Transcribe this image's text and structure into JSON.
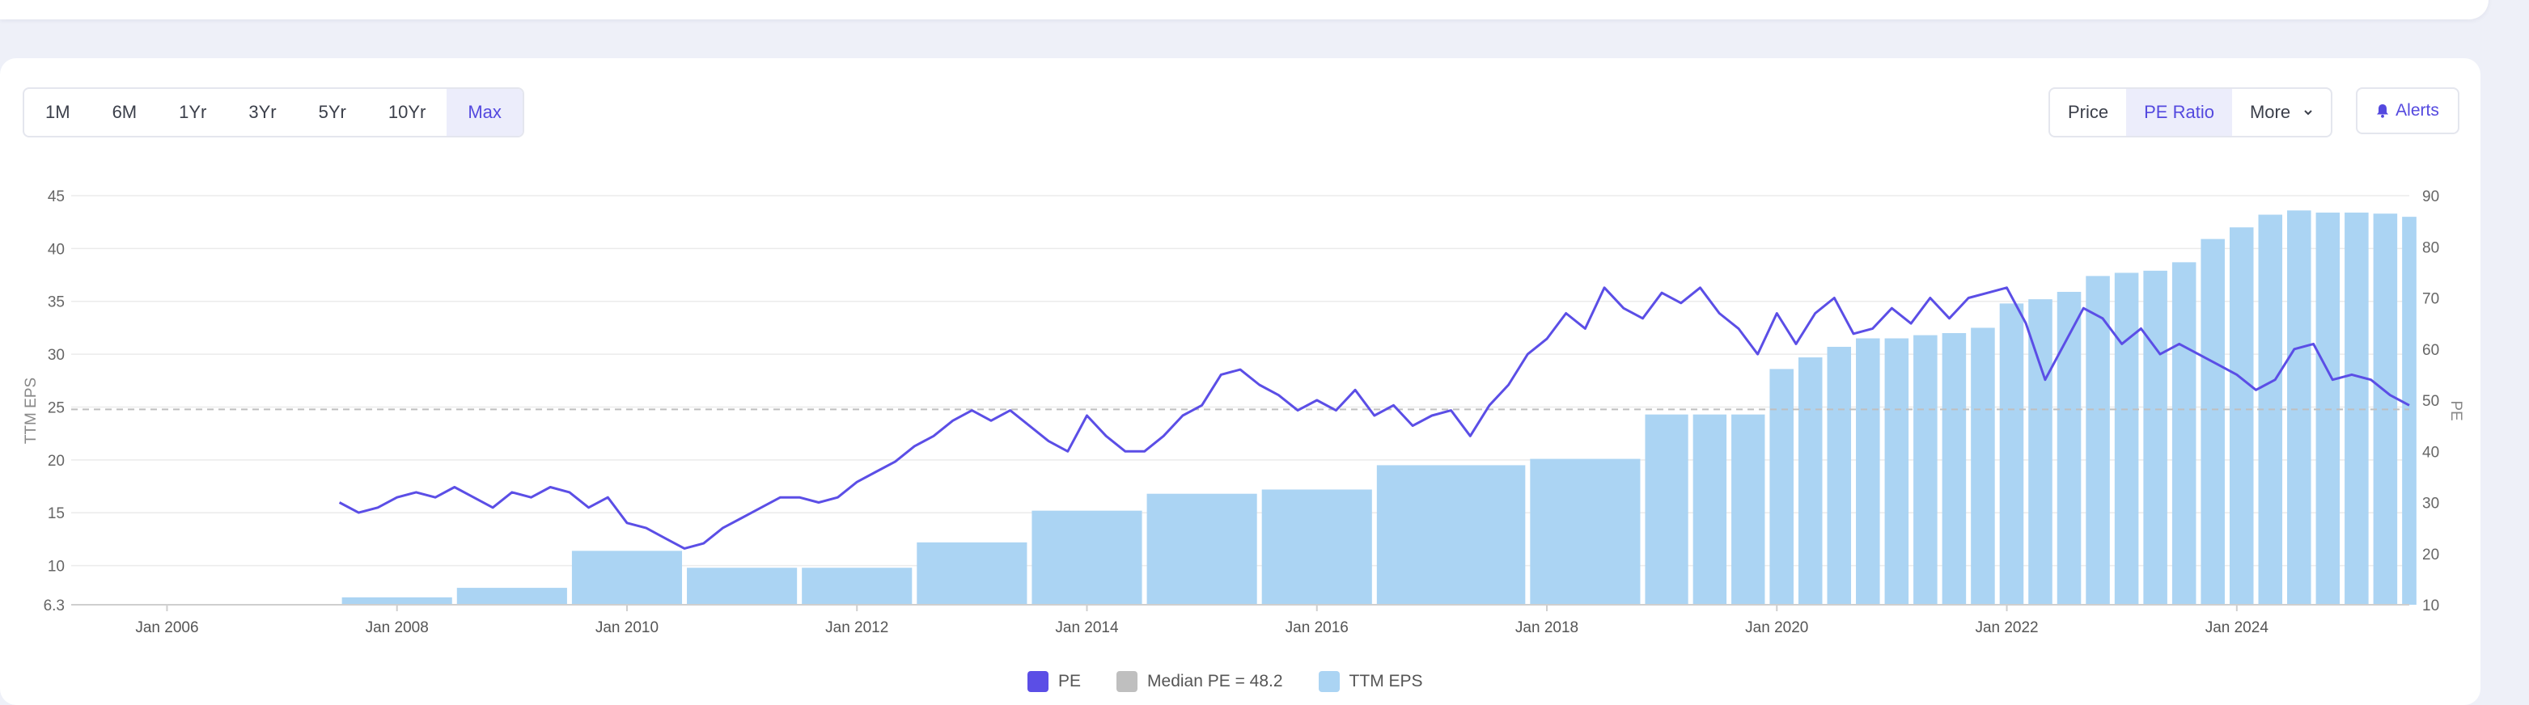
{
  "range_buttons": [
    "1M",
    "6M",
    "1Yr",
    "3Yr",
    "5Yr",
    "10Yr",
    "Max"
  ],
  "range_active": "Max",
  "view_buttons": {
    "price": "Price",
    "pe": "PE Ratio",
    "more": "More"
  },
  "view_active": "PE Ratio",
  "alerts_label": "Alerts",
  "colors": {
    "pe_line": "#5b4ee6",
    "eps_bar": "#abd4f3",
    "median": "#bfbfbf",
    "accent": "#5449df",
    "grid": "#ebebeb"
  },
  "chart_data": {
    "type": "bar",
    "title": "",
    "xlabel": "",
    "ylabel_left": "TTM EPS",
    "ylabel_right": "PE",
    "x_ticks": [
      "Jan 2006",
      "Jan 2008",
      "Jan 2010",
      "Jan 2012",
      "Jan 2014",
      "Jan 2016",
      "Jan 2018",
      "Jan 2020",
      "Jan 2022",
      "Jan 2024"
    ],
    "y_left_ticks": [
      "6.3",
      "10",
      "15",
      "20",
      "25",
      "30",
      "35",
      "40",
      "45"
    ],
    "y_left_lim": [
      6.3,
      45
    ],
    "y_right_ticks": [
      "10",
      "20",
      "30",
      "40",
      "50",
      "60",
      "70",
      "80",
      "90"
    ],
    "y_right_lim": [
      10,
      90
    ],
    "x_lim": [
      "2005-03",
      "2025-07"
    ],
    "grid": true,
    "legend_position": "bottom",
    "median_pe": 48.2,
    "legend": [
      "PE",
      "Median PE = 48.2",
      "TTM EPS"
    ],
    "series": [
      {
        "name": "TTM EPS",
        "type": "bar",
        "bars": [
          {
            "start": "2007-07",
            "end": "2008-06",
            "value": 7.0
          },
          {
            "start": "2008-07",
            "end": "2009-06",
            "value": 7.9
          },
          {
            "start": "2009-07",
            "end": "2010-06",
            "value": 11.4
          },
          {
            "start": "2010-07",
            "end": "2011-06",
            "value": 9.8
          },
          {
            "start": "2011-07",
            "end": "2012-06",
            "value": 9.8
          },
          {
            "start": "2012-07",
            "end": "2013-06",
            "value": 12.2
          },
          {
            "start": "2013-07",
            "end": "2014-06",
            "value": 15.2
          },
          {
            "start": "2014-07",
            "end": "2015-06",
            "value": 16.8
          },
          {
            "start": "2015-07",
            "end": "2016-06",
            "value": 17.2
          },
          {
            "start": "2016-07",
            "end": "2017-10",
            "value": 19.5
          },
          {
            "start": "2017-11",
            "end": "2018-10",
            "value": 20.1
          },
          {
            "start": "2018-11",
            "end": "2019-03",
            "value": 24.3
          },
          {
            "start": "2019-04",
            "end": "2019-07",
            "value": 24.3
          },
          {
            "start": "2019-08",
            "end": "2019-11",
            "value": 24.3
          },
          {
            "start": "2019-12",
            "end": "2020-02",
            "value": 28.6
          },
          {
            "start": "2020-03",
            "end": "2020-05",
            "value": 29.7
          },
          {
            "start": "2020-06",
            "end": "2020-08",
            "value": 30.7
          },
          {
            "start": "2020-09",
            "end": "2020-11",
            "value": 31.5
          },
          {
            "start": "2020-12",
            "end": "2021-02",
            "value": 31.5
          },
          {
            "start": "2021-03",
            "end": "2021-05",
            "value": 31.8
          },
          {
            "start": "2021-06",
            "end": "2021-08",
            "value": 32.0
          },
          {
            "start": "2021-09",
            "end": "2021-11",
            "value": 32.5
          },
          {
            "start": "2021-12",
            "end": "2022-02",
            "value": 34.8
          },
          {
            "start": "2022-03",
            "end": "2022-05",
            "value": 35.2
          },
          {
            "start": "2022-06",
            "end": "2022-08",
            "value": 35.9
          },
          {
            "start": "2022-09",
            "end": "2022-11",
            "value": 37.4
          },
          {
            "start": "2022-12",
            "end": "2023-02",
            "value": 37.7
          },
          {
            "start": "2023-03",
            "end": "2023-05",
            "value": 37.9
          },
          {
            "start": "2023-06",
            "end": "2023-08",
            "value": 38.7
          },
          {
            "start": "2023-09",
            "end": "2023-11",
            "value": 40.9
          },
          {
            "start": "2023-12",
            "end": "2024-02",
            "value": 42.0
          },
          {
            "start": "2024-03",
            "end": "2024-05",
            "value": 43.2
          },
          {
            "start": "2024-06",
            "end": "2024-08",
            "value": 43.6
          },
          {
            "start": "2024-09",
            "end": "2024-11",
            "value": 43.4
          },
          {
            "start": "2024-12",
            "end": "2025-02",
            "value": 43.4
          },
          {
            "start": "2025-03",
            "end": "2025-05",
            "value": 43.3
          },
          {
            "start": "2025-06",
            "end": "2025-07",
            "value": 43.0
          }
        ]
      },
      {
        "name": "PE",
        "type": "line",
        "points": [
          [
            "2007-07",
            30
          ],
          [
            "2007-09",
            28
          ],
          [
            "2007-11",
            29
          ],
          [
            "2008-01",
            31
          ],
          [
            "2008-03",
            32
          ],
          [
            "2008-05",
            31
          ],
          [
            "2008-07",
            33
          ],
          [
            "2008-09",
            31
          ],
          [
            "2008-11",
            29
          ],
          [
            "2009-01",
            32
          ],
          [
            "2009-03",
            31
          ],
          [
            "2009-05",
            33
          ],
          [
            "2009-07",
            32
          ],
          [
            "2009-09",
            29
          ],
          [
            "2009-11",
            31
          ],
          [
            "2010-01",
            26
          ],
          [
            "2010-03",
            25
          ],
          [
            "2010-05",
            23
          ],
          [
            "2010-07",
            21
          ],
          [
            "2010-09",
            22
          ],
          [
            "2010-11",
            25
          ],
          [
            "2011-01",
            27
          ],
          [
            "2011-03",
            29
          ],
          [
            "2011-05",
            31
          ],
          [
            "2011-07",
            31
          ],
          [
            "2011-09",
            30
          ],
          [
            "2011-11",
            31
          ],
          [
            "2012-01",
            34
          ],
          [
            "2012-03",
            36
          ],
          [
            "2012-05",
            38
          ],
          [
            "2012-07",
            41
          ],
          [
            "2012-09",
            43
          ],
          [
            "2012-11",
            46
          ],
          [
            "2013-01",
            48
          ],
          [
            "2013-03",
            46
          ],
          [
            "2013-05",
            48
          ],
          [
            "2013-07",
            45
          ],
          [
            "2013-09",
            42
          ],
          [
            "2013-11",
            40
          ],
          [
            "2014-01",
            47
          ],
          [
            "2014-03",
            43
          ],
          [
            "2014-05",
            40
          ],
          [
            "2014-07",
            40
          ],
          [
            "2014-09",
            43
          ],
          [
            "2014-11",
            47
          ],
          [
            "2015-01",
            49
          ],
          [
            "2015-03",
            55
          ],
          [
            "2015-05",
            56
          ],
          [
            "2015-07",
            53
          ],
          [
            "2015-09",
            51
          ],
          [
            "2015-11",
            48
          ],
          [
            "2016-01",
            50
          ],
          [
            "2016-03",
            48
          ],
          [
            "2016-05",
            52
          ],
          [
            "2016-07",
            47
          ],
          [
            "2016-09",
            49
          ],
          [
            "2016-11",
            45
          ],
          [
            "2017-01",
            47
          ],
          [
            "2017-03",
            48
          ],
          [
            "2017-05",
            43
          ],
          [
            "2017-07",
            49
          ],
          [
            "2017-09",
            53
          ],
          [
            "2017-11",
            59
          ],
          [
            "2018-01",
            62
          ],
          [
            "2018-03",
            67
          ],
          [
            "2018-05",
            64
          ],
          [
            "2018-07",
            72
          ],
          [
            "2018-09",
            68
          ],
          [
            "2018-11",
            66
          ],
          [
            "2019-01",
            71
          ],
          [
            "2019-03",
            69
          ],
          [
            "2019-05",
            72
          ],
          [
            "2019-07",
            67
          ],
          [
            "2019-09",
            64
          ],
          [
            "2019-11",
            59
          ],
          [
            "2020-01",
            67
          ],
          [
            "2020-03",
            61
          ],
          [
            "2020-05",
            67
          ],
          [
            "2020-07",
            70
          ],
          [
            "2020-09",
            63
          ],
          [
            "2020-11",
            64
          ],
          [
            "2021-01",
            68
          ],
          [
            "2021-03",
            65
          ],
          [
            "2021-05",
            70
          ],
          [
            "2021-07",
            66
          ],
          [
            "2021-09",
            70
          ],
          [
            "2021-11",
            71
          ],
          [
            "2022-01",
            72
          ],
          [
            "2022-03",
            65
          ],
          [
            "2022-05",
            54
          ],
          [
            "2022-07",
            61
          ],
          [
            "2022-09",
            68
          ],
          [
            "2022-11",
            66
          ],
          [
            "2023-01",
            61
          ],
          [
            "2023-03",
            64
          ],
          [
            "2023-05",
            59
          ],
          [
            "2023-07",
            61
          ],
          [
            "2023-09",
            59
          ],
          [
            "2023-11",
            57
          ],
          [
            "2024-01",
            55
          ],
          [
            "2024-03",
            52
          ],
          [
            "2024-05",
            54
          ],
          [
            "2024-07",
            60
          ],
          [
            "2024-09",
            61
          ],
          [
            "2024-11",
            54
          ],
          [
            "2025-01",
            55
          ],
          [
            "2025-03",
            54
          ],
          [
            "2025-05",
            51
          ],
          [
            "2025-07",
            49
          ]
        ]
      }
    ]
  }
}
